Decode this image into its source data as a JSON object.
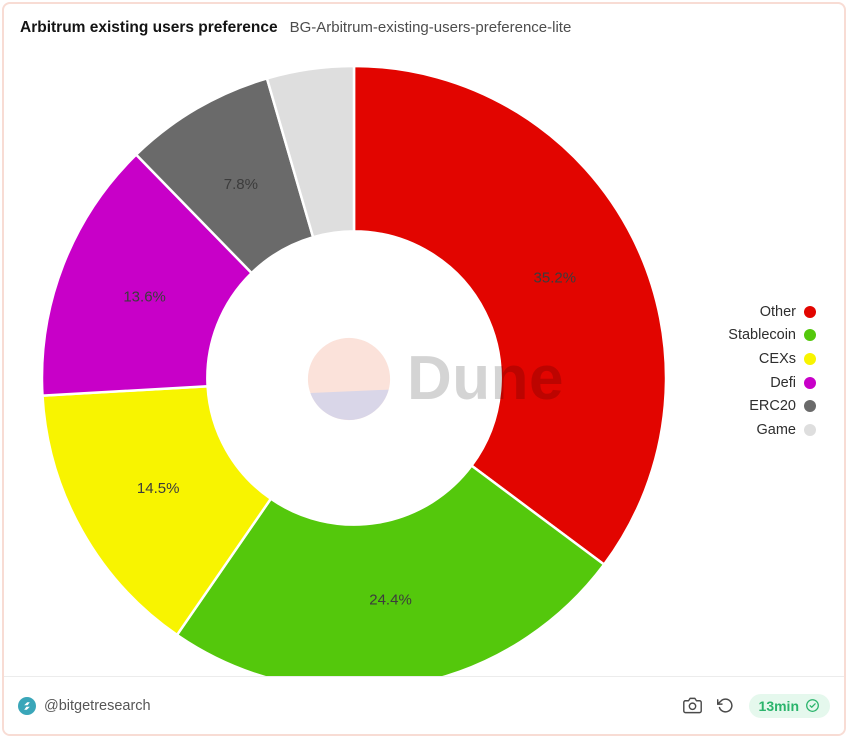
{
  "header": {
    "title": "Arbitrum existing users preference",
    "subtitle": "BG-Arbitrum-existing-users-preference-lite"
  },
  "chart_data": {
    "type": "pie",
    "title": "Arbitrum existing users preference",
    "donut": true,
    "inner_radius_ratio": 0.47,
    "start_angle_deg": 0,
    "direction": "clockwise",
    "legend_position": "right",
    "total": 100,
    "slices": [
      {
        "name": "Other",
        "value": 35.2,
        "label": "35.2%",
        "color": "#e20500"
      },
      {
        "name": "Stablecoin",
        "value": 24.4,
        "label": "24.4%",
        "color": "#54c80c"
      },
      {
        "name": "CEXs",
        "value": 14.5,
        "label": "14.5%",
        "color": "#f8f400"
      },
      {
        "name": "Defi",
        "value": 13.6,
        "label": "13.6%",
        "color": "#c800c8"
      },
      {
        "name": "ERC20",
        "value": 7.8,
        "label": "7.8%",
        "color": "#6a6a6a"
      },
      {
        "name": "Game",
        "value": 4.5,
        "label": "",
        "color": "#dedede"
      }
    ]
  },
  "watermark": {
    "text": "Dune"
  },
  "footer": {
    "handle": "@bitgetresearch",
    "refresh_badge": "13min",
    "icons": [
      "camera-icon",
      "refresh-icon",
      "verified-check-icon",
      "bitget-avatar"
    ]
  },
  "colors": {
    "card_border": "#f8dcd4",
    "divider": "#ececec",
    "badge_green": "#2bb46c",
    "badge_bg": "#e5f8ed",
    "avatar_teal": "#3aa6b9",
    "watermark_peach": "#fbe2da",
    "watermark_lavender": "#d9d6e8"
  }
}
